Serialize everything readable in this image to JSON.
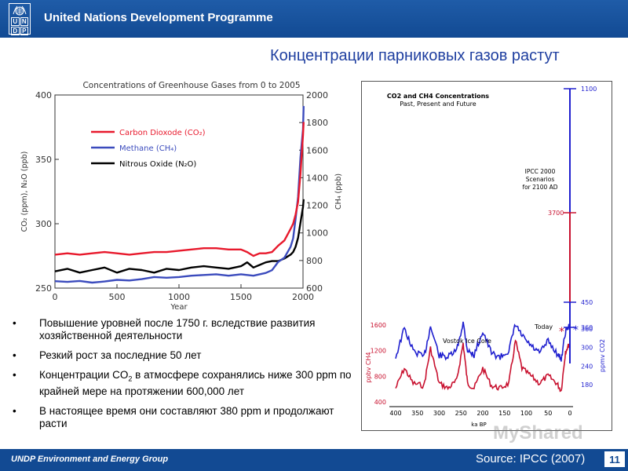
{
  "header": {
    "title": "United Nations Development Programme",
    "logo_letters": [
      "U",
      "N",
      "D",
      "P"
    ]
  },
  "slide_title": "Концентрации парниковых газов растут",
  "bullets": [
    {
      "text": "Повышение уровней после 1750 г. вследствие развития хозяйственной деятельности"
    },
    {
      "text": "Резкий рост за последние 50 лет"
    },
    {
      "text_before": "Концентрации CO",
      "sub": "2",
      "text_after": " в атмосфере сохранялись ниже 300 ppm по крайней мере на протяжении  600,000 лет"
    },
    {
      "text": "В настоящее время они составляют 380 ppm и продолжают расти"
    }
  ],
  "footer": {
    "group": "UNDP Environment and Energy Group",
    "source": "Source: IPCC (2007)",
    "page": "11"
  },
  "watermark": "MyShared",
  "colors": {
    "header_blue": "#1a56a3",
    "title_blue": "#1f3fa0",
    "co2_red": "#e8192c",
    "ch4_blue": "#3b4bbd",
    "n2o_black": "#000000",
    "ipcc_red": "#c8102e",
    "ipcc_blue": "#1f1fcf"
  },
  "chart_data": [
    {
      "type": "line",
      "title": "Concentrations of Greenhouse Gases from 0 to 2005",
      "xlabel": "Year",
      "ylabel_left": "CO₂ (ppm), N₂O (ppb)",
      "ylabel_right": "CH₄ (ppb)",
      "xlim": [
        0,
        2000
      ],
      "ylim_left": [
        250,
        400
      ],
      "ylim_right": [
        600,
        2000
      ],
      "x_ticks": [
        0,
        500,
        1000,
        1500,
        2000
      ],
      "y_ticks_left": [
        250,
        300,
        350,
        400
      ],
      "y_ticks_right": [
        600,
        800,
        1000,
        1200,
        1400,
        1600,
        1800,
        2000
      ],
      "legend": "upper-left",
      "series": [
        {
          "name": "Carbon Dioxode (CO₂)",
          "axis": "left",
          "color": "#e8192c",
          "x": [
            0,
            100,
            200,
            300,
            400,
            500,
            600,
            700,
            800,
            900,
            1000,
            1100,
            1200,
            1300,
            1400,
            1500,
            1550,
            1600,
            1650,
            1700,
            1750,
            1800,
            1850,
            1900,
            1920,
            1940,
            1960,
            1980,
            2000,
            2005
          ],
          "y": [
            276,
            277,
            276,
            277,
            278,
            277,
            276,
            277,
            278,
            278,
            279,
            280,
            281,
            281,
            280,
            280,
            278,
            275,
            277,
            277,
            278,
            283,
            287,
            296,
            300,
            307,
            317,
            339,
            369,
            379
          ]
        },
        {
          "name": "Methane (CH₄)",
          "axis": "right",
          "color": "#3b4bbd",
          "x": [
            0,
            100,
            200,
            300,
            400,
            500,
            600,
            700,
            800,
            900,
            1000,
            1100,
            1200,
            1300,
            1400,
            1500,
            1550,
            1600,
            1650,
            1700,
            1750,
            1800,
            1850,
            1900,
            1920,
            1940,
            1960,
            1980,
            2000,
            2005
          ],
          "y": [
            650,
            645,
            652,
            640,
            648,
            660,
            655,
            665,
            680,
            675,
            680,
            690,
            695,
            700,
            690,
            700,
            695,
            690,
            700,
            710,
            730,
            790,
            820,
            900,
            960,
            1100,
            1260,
            1550,
            1750,
            1920
          ]
        },
        {
          "name": "Nitrous Oxide (N₂O)",
          "axis": "left",
          "color": "#000000",
          "x": [
            0,
            100,
            200,
            300,
            400,
            500,
            600,
            700,
            800,
            900,
            1000,
            1100,
            1200,
            1300,
            1400,
            1500,
            1550,
            1600,
            1650,
            1700,
            1750,
            1800,
            1850,
            1900,
            1920,
            1940,
            1960,
            1980,
            2000,
            2005
          ],
          "y": [
            263,
            265,
            262,
            264,
            266,
            262,
            265,
            264,
            262,
            265,
            264,
            266,
            267,
            266,
            265,
            267,
            270,
            266,
            268,
            270,
            271,
            271,
            273,
            276,
            278,
            282,
            289,
            301,
            313,
            319
          ]
        }
      ]
    },
    {
      "type": "line",
      "title": "CO2 and CH4 Concentrations",
      "subtitle": "Past, Present and Future",
      "xlabel": "ka BP",
      "ylabel_left": "ppbv CH4",
      "ylabel_right": "ppmv CO2",
      "x_ticks": [
        400,
        350,
        300,
        250,
        200,
        150,
        100,
        50,
        0
      ],
      "y_ticks_left": [
        400,
        800,
        1200,
        1600
      ],
      "y_ticks_right": [
        180,
        240,
        300,
        360
      ],
      "annotations": [
        "Vostok Ice Core",
        "Today",
        "IPCC 2000 Scenarios for 2100 AD"
      ],
      "scenario_labels": [
        {
          "label": "1100",
          "color": "#1f1fcf"
        },
        {
          "label": "3700",
          "color": "#c8102e"
        },
        {
          "label": "450",
          "color": "#1f1fcf"
        },
        {
          "label": "360",
          "color": "#1f1fcf"
        }
      ],
      "series": [
        {
          "name": "CO2",
          "color": "#c8102e",
          "x": [
            400,
            380,
            360,
            335,
            320,
            300,
            280,
            260,
            245,
            235,
            220,
            200,
            180,
            160,
            140,
            125,
            110,
            90,
            70,
            50,
            30,
            20,
            10,
            0
          ],
          "y": [
            190,
            230,
            200,
            195,
            270,
            200,
            190,
            205,
            280,
            200,
            190,
            230,
            195,
            190,
            200,
            285,
            230,
            215,
            200,
            215,
            200,
            185,
            265,
            280
          ]
        },
        {
          "name": "CH4",
          "color": "#1f1fcf",
          "x": [
            400,
            380,
            360,
            335,
            320,
            300,
            280,
            260,
            245,
            235,
            220,
            200,
            180,
            160,
            140,
            125,
            110,
            90,
            70,
            50,
            30,
            20,
            10,
            0
          ],
          "y": [
            380,
            680,
            450,
            380,
            700,
            400,
            380,
            450,
            740,
            450,
            400,
            650,
            420,
            380,
            450,
            720,
            600,
            500,
            420,
            550,
            420,
            360,
            650,
            720
          ]
        }
      ]
    }
  ]
}
